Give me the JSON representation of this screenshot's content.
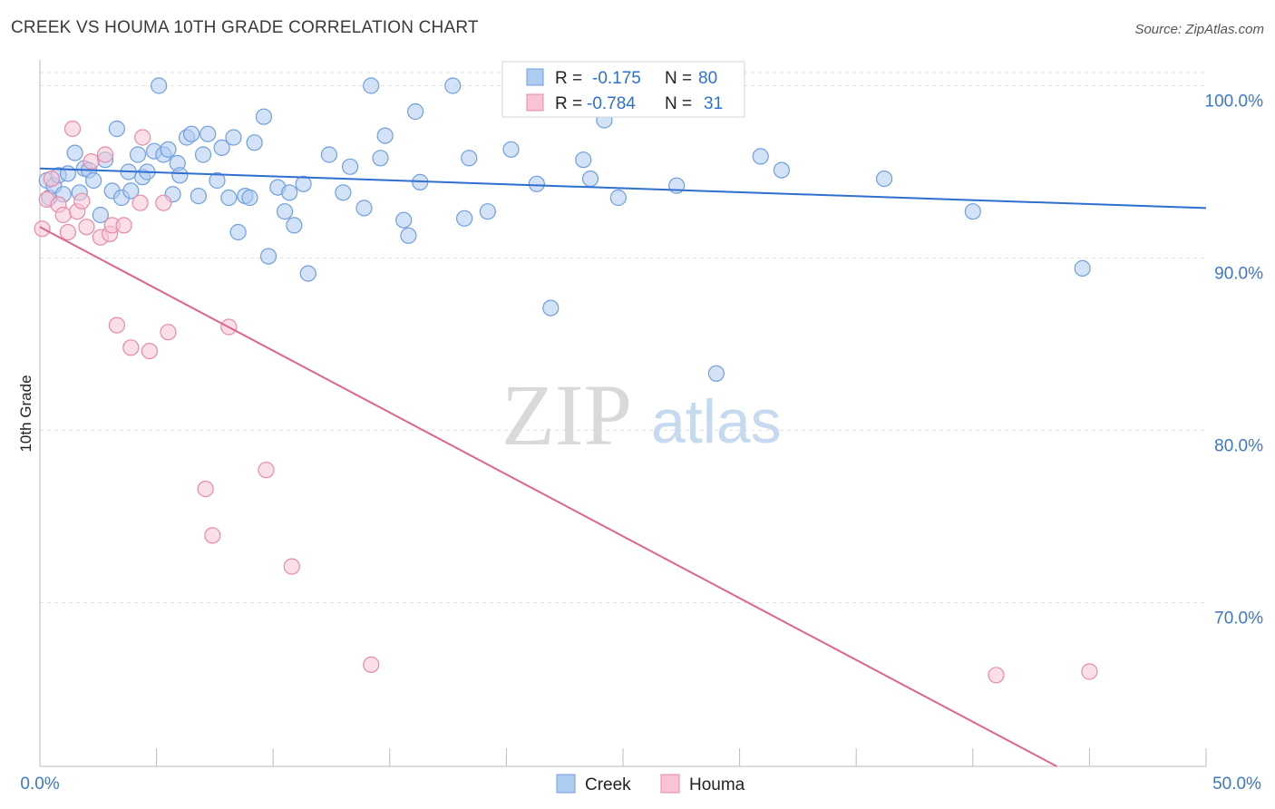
{
  "header": {
    "title": "CREEK VS HOUMA 10TH GRADE CORRELATION CHART",
    "source": "Source: ZipAtlas.com"
  },
  "watermark": {
    "part1": "ZIP",
    "part2": "atlas"
  },
  "legend": {
    "r_label": "R =",
    "n_label": "N =",
    "rows": [
      {
        "r": "-0.175",
        "n": "80",
        "color": "#aecbf0",
        "stroke": "#6f9fde"
      },
      {
        "r": "-0.784",
        "n": "31",
        "color": "#f8c4d4",
        "stroke": "#e88aa8"
      }
    ]
  },
  "bottom_legend": [
    {
      "label": "Creek",
      "color": "#aecbf0",
      "stroke": "#6f9fde"
    },
    {
      "label": "Houma",
      "color": "#f8c4d4",
      "stroke": "#e88aa8"
    }
  ],
  "chart_data": {
    "type": "scatter",
    "title": "CREEK VS HOUMA 10TH GRADE CORRELATION CHART",
    "xlabel": "",
    "ylabel": "10th Grade",
    "xlim": [
      0,
      50
    ],
    "ylim": [
      60.5,
      101.5
    ],
    "x_tick_labels": [
      "0.0%",
      "50.0%"
    ],
    "y_ticks": [
      70,
      80,
      90,
      100
    ],
    "y_tick_labels": [
      "70.0%",
      "80.0%",
      "90.0%",
      "100.0%"
    ],
    "grid": true,
    "series": [
      {
        "name": "Creek",
        "color": "#aecbf0",
        "stroke": "#6f9fde",
        "trend": {
          "x": [
            0,
            50
          ],
          "y": [
            95.2,
            92.9
          ],
          "color": "#2f6fd0"
        },
        "points": [
          [
            0.3,
            94.5
          ],
          [
            0.4,
            93.5
          ],
          [
            0.6,
            94.2
          ],
          [
            0.8,
            94.8
          ],
          [
            1.0,
            93.7
          ],
          [
            1.2,
            94.9
          ],
          [
            1.5,
            96.1
          ],
          [
            1.7,
            93.8
          ],
          [
            1.9,
            95.2
          ],
          [
            2.1,
            95.1
          ],
          [
            2.3,
            94.5
          ],
          [
            2.6,
            92.5
          ],
          [
            2.8,
            95.7
          ],
          [
            3.1,
            93.9
          ],
          [
            3.3,
            97.5
          ],
          [
            3.5,
            93.5
          ],
          [
            3.8,
            95.0
          ],
          [
            3.9,
            93.9
          ],
          [
            4.2,
            96.0
          ],
          [
            4.4,
            94.7
          ],
          [
            4.6,
            95.0
          ],
          [
            4.9,
            96.2
          ],
          [
            5.1,
            100.0
          ],
          [
            5.3,
            96.0
          ],
          [
            5.5,
            96.3
          ],
          [
            5.7,
            93.7
          ],
          [
            5.9,
            95.5
          ],
          [
            6.0,
            94.8
          ],
          [
            6.3,
            97.0
          ],
          [
            6.5,
            97.2
          ],
          [
            6.8,
            93.6
          ],
          [
            7.0,
            96.0
          ],
          [
            7.2,
            97.2
          ],
          [
            7.6,
            94.5
          ],
          [
            7.8,
            96.4
          ],
          [
            8.1,
            93.5
          ],
          [
            8.3,
            97.0
          ],
          [
            8.5,
            91.5
          ],
          [
            8.8,
            93.6
          ],
          [
            9.0,
            93.5
          ],
          [
            9.2,
            96.7
          ],
          [
            9.6,
            98.2
          ],
          [
            9.8,
            90.1
          ],
          [
            10.2,
            94.1
          ],
          [
            10.5,
            92.7
          ],
          [
            10.7,
            93.8
          ],
          [
            10.9,
            91.9
          ],
          [
            11.3,
            94.3
          ],
          [
            11.5,
            89.1
          ],
          [
            12.4,
            96.0
          ],
          [
            13.0,
            93.8
          ],
          [
            13.3,
            95.3
          ],
          [
            13.9,
            92.9
          ],
          [
            14.2,
            100.0
          ],
          [
            14.6,
            95.8
          ],
          [
            14.8,
            97.1
          ],
          [
            15.6,
            92.2
          ],
          [
            15.8,
            91.3
          ],
          [
            16.1,
            98.5
          ],
          [
            16.3,
            94.4
          ],
          [
            17.7,
            100.0
          ],
          [
            18.2,
            92.3
          ],
          [
            18.4,
            95.8
          ],
          [
            19.2,
            92.7
          ],
          [
            20.2,
            96.3
          ],
          [
            21.3,
            94.3
          ],
          [
            21.9,
            87.1
          ],
          [
            22.3,
            100.0
          ],
          [
            22.8,
            100.0
          ],
          [
            23.3,
            95.7
          ],
          [
            23.6,
            94.6
          ],
          [
            24.2,
            98.0
          ],
          [
            24.8,
            93.5
          ],
          [
            27.3,
            94.2
          ],
          [
            29.0,
            83.3
          ],
          [
            30.9,
            95.9
          ],
          [
            31.8,
            95.1
          ],
          [
            36.2,
            94.6
          ],
          [
            40.0,
            92.7
          ],
          [
            44.7,
            89.4
          ]
        ]
      },
      {
        "name": "Houma",
        "color": "#f8c4d4",
        "stroke": "#e88aa8",
        "trend": {
          "x": [
            0,
            43.6
          ],
          "y": [
            91.8,
            60.5
          ],
          "color": "#e0648e"
        },
        "points": [
          [
            0.1,
            91.7
          ],
          [
            0.3,
            93.4
          ],
          [
            0.5,
            94.6
          ],
          [
            0.8,
            93.1
          ],
          [
            1.0,
            92.5
          ],
          [
            1.2,
            91.5
          ],
          [
            1.4,
            97.5
          ],
          [
            1.6,
            92.7
          ],
          [
            1.8,
            93.3
          ],
          [
            2.0,
            91.8
          ],
          [
            2.2,
            95.6
          ],
          [
            2.6,
            91.2
          ],
          [
            2.8,
            96.0
          ],
          [
            3.0,
            91.4
          ],
          [
            3.1,
            91.9
          ],
          [
            3.3,
            86.1
          ],
          [
            3.6,
            91.9
          ],
          [
            3.9,
            84.8
          ],
          [
            4.3,
            93.2
          ],
          [
            4.4,
            97.0
          ],
          [
            4.7,
            84.6
          ],
          [
            5.3,
            93.2
          ],
          [
            5.5,
            85.7
          ],
          [
            7.1,
            76.6
          ],
          [
            7.4,
            73.9
          ],
          [
            8.1,
            86.0
          ],
          [
            9.7,
            77.7
          ],
          [
            10.8,
            72.1
          ],
          [
            14.2,
            66.4
          ],
          [
            41.0,
            65.8
          ],
          [
            45.0,
            66.0
          ]
        ]
      }
    ]
  }
}
